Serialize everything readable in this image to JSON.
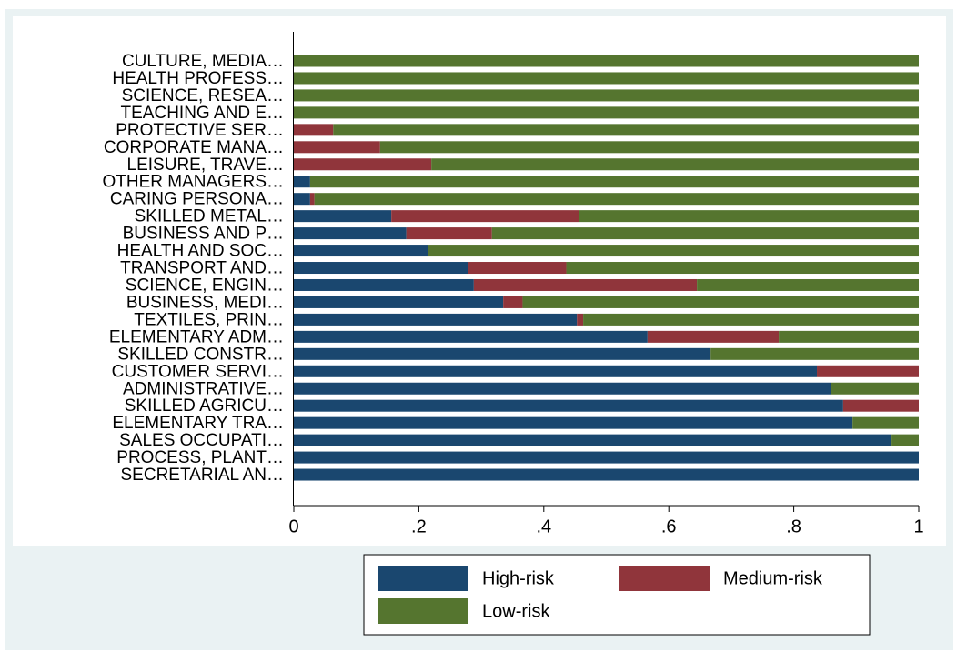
{
  "chart_data": {
    "type": "stacked-barh",
    "categories": [
      "CULTURE, MEDIA…",
      "HEALTH PROFESS…",
      "SCIENCE, RESEA…",
      "TEACHING AND E…",
      "PROTECTIVE SER…",
      "CORPORATE MANA…",
      "LEISURE, TRAVE…",
      "OTHER MANAGERS…",
      "CARING PERSONA…",
      "SKILLED METAL…",
      "BUSINESS AND P…",
      "HEALTH AND SOC…",
      "TRANSPORT AND…",
      "SCIENCE, ENGIN…",
      "BUSINESS, MEDI…",
      "TEXTILES, PRIN…",
      "ELEMENTARY ADM…",
      "SKILLED CONSTR…",
      "CUSTOMER SERVI…",
      "ADMINISTRATIVE…",
      "SKILLED AGRICU…",
      "ELEMENTARY TRA…",
      "SALES OCCUPATI…",
      "PROCESS, PLANT…",
      "SECRETARIAL AN…"
    ],
    "series": [
      {
        "name": "High-risk",
        "color": "#1a476f",
        "values": [
          0,
          0,
          0,
          0,
          0,
          0,
          0,
          0.026,
          0.026,
          0.156,
          0.18,
          0.214,
          0.279,
          0.288,
          0.335,
          0.453,
          0.566,
          0.667,
          0.837,
          0.86,
          0.879,
          0.894,
          0.955,
          1,
          1
        ]
      },
      {
        "name": "Medium-risk",
        "color": "#90353b",
        "values": [
          0,
          0,
          0,
          0,
          0.063,
          0.138,
          0.22,
          0,
          0.007,
          0.301,
          0.137,
          0,
          0.157,
          0.357,
          0.031,
          0.01,
          0.21,
          0,
          0.163,
          0,
          0.121,
          0,
          0,
          0,
          0
        ]
      },
      {
        "name": "Low-risk",
        "color": "#55752f",
        "values": [
          1,
          1,
          1,
          1,
          0.937,
          0.862,
          0.78,
          0.974,
          0.967,
          0.543,
          0.683,
          0.786,
          0.564,
          0.355,
          0.634,
          0.537,
          0.224,
          0.333,
          0,
          0.14,
          0,
          0.106,
          0.045,
          0,
          0
        ]
      }
    ],
    "xlim": [
      0,
      1
    ],
    "xticks": [
      0,
      {
        "value": 0.2,
        "label": ".2"
      },
      {
        "value": 0.4,
        "label": ".4"
      },
      {
        "value": 0.6,
        "label": ".6"
      },
      {
        "value": 0.8,
        "label": ".8"
      },
      1
    ]
  }
}
